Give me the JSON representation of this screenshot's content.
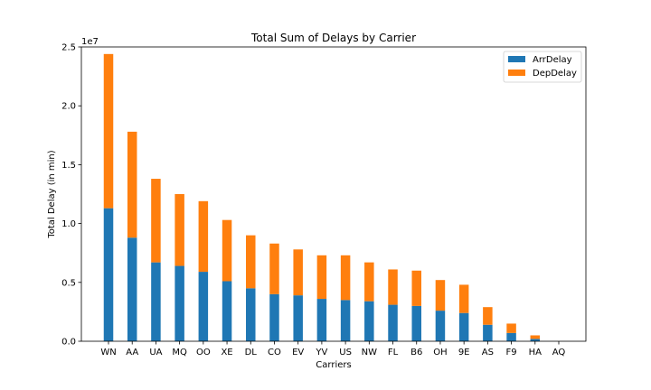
{
  "chart_data": {
    "type": "bar",
    "stacked": true,
    "title": "Total Sum of Delays by Carrier",
    "xlabel": "Carriers",
    "ylabel": "Total Delay (in min)",
    "y_multiplier_label": "1e7",
    "y_multiplier": 10000000,
    "ylim": [
      0,
      2.5
    ],
    "yticks": [
      "0.0",
      "0.5",
      "1.0",
      "1.5",
      "2.0",
      "2.5"
    ],
    "legend_position": "top-right",
    "categories": [
      "WN",
      "AA",
      "UA",
      "MQ",
      "OO",
      "XE",
      "DL",
      "CO",
      "EV",
      "YV",
      "US",
      "NW",
      "FL",
      "B6",
      "OH",
      "9E",
      "AS",
      "F9",
      "HA",
      "AQ"
    ],
    "series": [
      {
        "name": "ArrDelay",
        "color": "#1f77b4",
        "values": [
          1.13,
          0.88,
          0.67,
          0.64,
          0.59,
          0.51,
          0.45,
          0.4,
          0.39,
          0.36,
          0.35,
          0.34,
          0.31,
          0.3,
          0.26,
          0.24,
          0.14,
          0.07,
          0.02,
          0.0
        ]
      },
      {
        "name": "DepDelay",
        "color": "#ff7f0e",
        "values": [
          1.31,
          0.9,
          0.71,
          0.61,
          0.6,
          0.52,
          0.45,
          0.43,
          0.39,
          0.37,
          0.38,
          0.33,
          0.3,
          0.3,
          0.26,
          0.24,
          0.15,
          0.08,
          0.03,
          0.0
        ]
      }
    ]
  }
}
